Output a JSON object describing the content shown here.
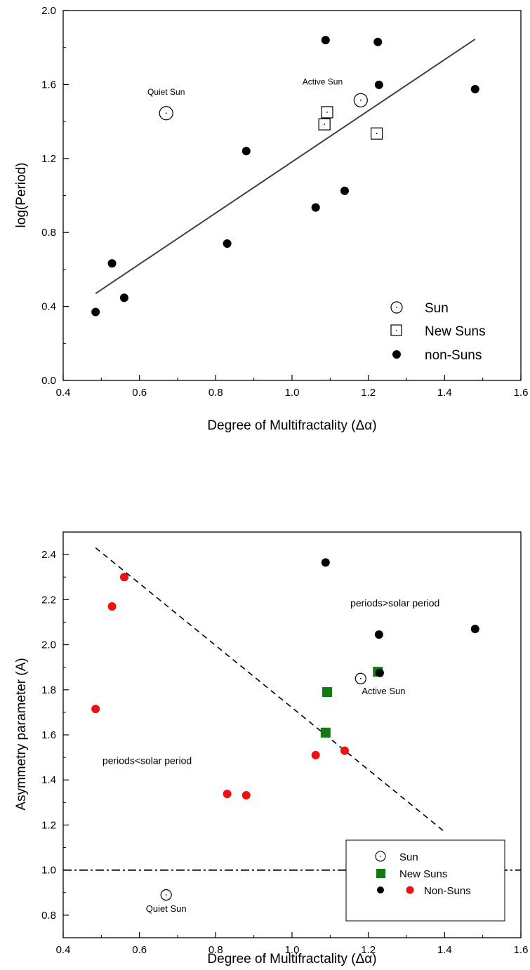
{
  "chart_data": [
    {
      "type": "scatter",
      "xlabel": "Degree of Multifractality (Δα)",
      "ylabel": "log(Period)",
      "xlim": [
        0.4,
        1.6
      ],
      "ylim": [
        0.0,
        2.0
      ],
      "xticks": [
        "0.4",
        "0.6",
        "0.8",
        "1.0",
        "1.2",
        "1.4",
        "1.6"
      ],
      "yticks": [
        "0.0",
        "0.4",
        "0.8",
        "1.2",
        "1.6",
        "2.0"
      ],
      "grid": false,
      "legend_position": "bottom-right",
      "series": [
        {
          "name": "Sun",
          "marker": "sun-circle",
          "color": "#000000",
          "points": [
            {
              "x": 0.67,
              "y": 1.445
            },
            {
              "x": 1.18,
              "y": 1.515
            }
          ]
        },
        {
          "name": "New Suns",
          "marker": "open-square",
          "color": "#000000",
          "points": [
            {
              "x": 1.092,
              "y": 1.45
            },
            {
              "x": 1.085,
              "y": 1.385
            },
            {
              "x": 1.222,
              "y": 1.335
            }
          ]
        },
        {
          "name": "non-Suns",
          "marker": "filled-circle",
          "color": "#000000",
          "points": [
            {
              "x": 0.485,
              "y": 0.37
            },
            {
              "x": 0.528,
              "y": 0.633
            },
            {
              "x": 0.56,
              "y": 0.447
            },
            {
              "x": 0.83,
              "y": 0.74
            },
            {
              "x": 0.88,
              "y": 1.24
            },
            {
              "x": 1.062,
              "y": 0.935
            },
            {
              "x": 1.088,
              "y": 1.84
            },
            {
              "x": 1.138,
              "y": 1.025
            },
            {
              "x": 1.225,
              "y": 1.83
            },
            {
              "x": 1.228,
              "y": 1.598
            },
            {
              "x": 1.48,
              "y": 1.575
            }
          ]
        }
      ],
      "fit_line": {
        "style": "solid",
        "color": "#404040",
        "x": [
          0.485,
          1.48
        ],
        "y": [
          0.47,
          1.845
        ]
      },
      "annotations": [
        {
          "text": "Quiet Sun",
          "x": 0.67,
          "y": 1.545
        },
        {
          "text": "Active Sun",
          "x": 1.08,
          "y": 1.6
        }
      ]
    },
    {
      "type": "scatter",
      "xlabel": "Degree of Multifractality (Δα)",
      "ylabel": "Asymmetry parameter (A)",
      "xlim": [
        0.4,
        1.6
      ],
      "ylim": [
        0.7,
        2.5
      ],
      "xticks": [
        "0.4",
        "0.6",
        "0.8",
        "1.0",
        "1.2",
        "1.4",
        "1.6"
      ],
      "yticks": [
        "0.8",
        "1.0",
        "1.2",
        "1.4",
        "1.6",
        "1.8",
        "2.0",
        "2.2",
        "2.4"
      ],
      "grid": false,
      "legend_position": "bottom-right",
      "series": [
        {
          "name": "Sun",
          "marker": "sun-circle",
          "color": "#000000",
          "points": [
            {
              "x": 0.67,
              "y": 0.89
            },
            {
              "x": 1.18,
              "y": 1.85
            }
          ]
        },
        {
          "name": "New Suns",
          "marker": "filled-square",
          "color": "#127a12",
          "points": [
            {
              "x": 1.092,
              "y": 1.79
            },
            {
              "x": 1.088,
              "y": 1.61
            },
            {
              "x": 1.225,
              "y": 1.88
            }
          ]
        },
        {
          "name": "Non-Suns",
          "marker": "filled-circle",
          "color": "#000000",
          "points": [
            {
              "x": 1.088,
              "y": 2.365
            },
            {
              "x": 1.228,
              "y": 2.045
            },
            {
              "x": 1.48,
              "y": 2.07
            },
            {
              "x": 1.23,
              "y": 1.875
            }
          ]
        },
        {
          "name": "Non-Suns",
          "marker": "filled-circle",
          "color": "#ee1111",
          "points": [
            {
              "x": 0.485,
              "y": 1.715
            },
            {
              "x": 0.528,
              "y": 2.17
            },
            {
              "x": 0.56,
              "y": 2.3
            },
            {
              "x": 0.83,
              "y": 1.338
            },
            {
              "x": 0.88,
              "y": 1.332
            },
            {
              "x": 1.062,
              "y": 1.51
            },
            {
              "x": 1.138,
              "y": 1.53
            }
          ]
        }
      ],
      "fit_line": {
        "style": "dashed",
        "color": "#000000",
        "x": [
          0.485,
          1.4
        ],
        "y": [
          2.43,
          1.17
        ]
      },
      "reference_line": {
        "style": "dash-dot",
        "color": "#000000",
        "y": 1.0
      },
      "annotations": [
        {
          "text": "periods>solar period",
          "x": 1.27,
          "y": 2.17
        },
        {
          "text": "periods<solar period",
          "x": 0.62,
          "y": 1.47
        },
        {
          "text": "Active Sun",
          "x": 1.24,
          "y": 1.78
        },
        {
          "text": "Quiet Sun",
          "x": 0.67,
          "y": 0.815
        }
      ],
      "legend_labels": [
        "Sun",
        "New Suns",
        "Non-Suns"
      ]
    }
  ]
}
